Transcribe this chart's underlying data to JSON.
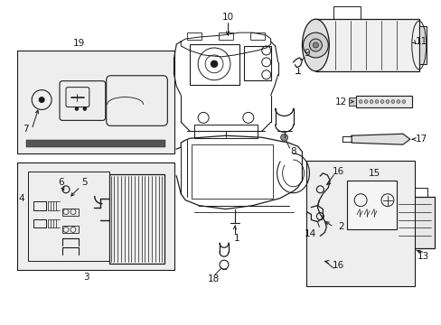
{
  "bg_color": "#ffffff",
  "line_color": "#1a1a1a",
  "fig_width": 4.89,
  "fig_height": 3.6,
  "dpi": 100,
  "label_fontsize": 7.5
}
